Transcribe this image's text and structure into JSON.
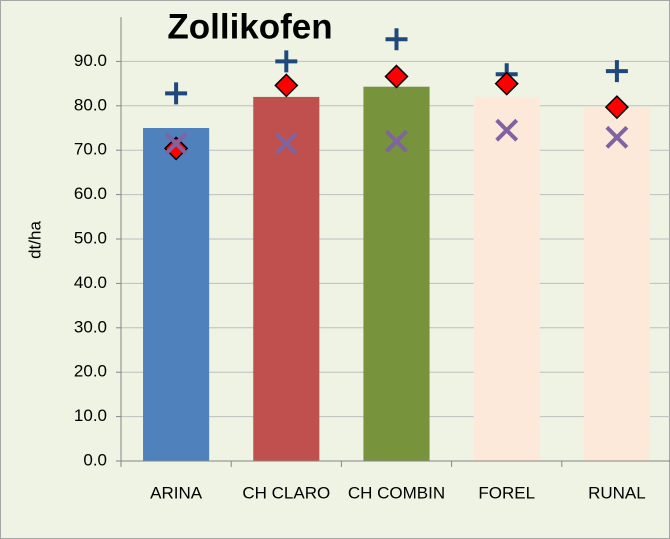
{
  "chart_data": {
    "type": "bar",
    "title": "Zollikofen",
    "y_label": "dt/ha",
    "categories": [
      "ARINA",
      "CH CLARO",
      "CH COMBIN",
      "FOREL",
      "RUNAL"
    ],
    "values": [
      75.0,
      82.0,
      84.3,
      82.0,
      79.7
    ],
    "colors": [
      "#4f81bd",
      "#c0504d",
      "#77933c",
      "#fde9d9",
      "#fde9d9"
    ],
    "markers": [
      {
        "marker": "plus",
        "color": "#1f497d",
        "values": [
          82.8,
          90.0,
          95.0,
          87.1,
          87.8
        ]
      },
      {
        "marker": "diamond",
        "color": "#ff0000",
        "values": [
          70.4,
          84.6,
          86.6,
          85.0,
          79.7
        ]
      },
      {
        "marker": "cross",
        "color": "#8064a2",
        "values": [
          71.5,
          71.5,
          72.0,
          74.5,
          72.9
        ]
      }
    ],
    "ylim": [
      0,
      100
    ],
    "yticks": [
      {
        "value": 0,
        "label": "0.0"
      },
      {
        "value": 10,
        "label": "10.0"
      },
      {
        "value": 20,
        "label": "20.0"
      },
      {
        "value": 30,
        "label": "30.0"
      },
      {
        "value": 40,
        "label": "40.0"
      },
      {
        "value": 50,
        "label": "50.0"
      },
      {
        "value": 60,
        "label": "60.0"
      },
      {
        "value": 70,
        "label": "70.0"
      },
      {
        "value": 80,
        "label": "80.0"
      },
      {
        "value": 90,
        "label": "90.0"
      }
    ],
    "grid": true
  }
}
